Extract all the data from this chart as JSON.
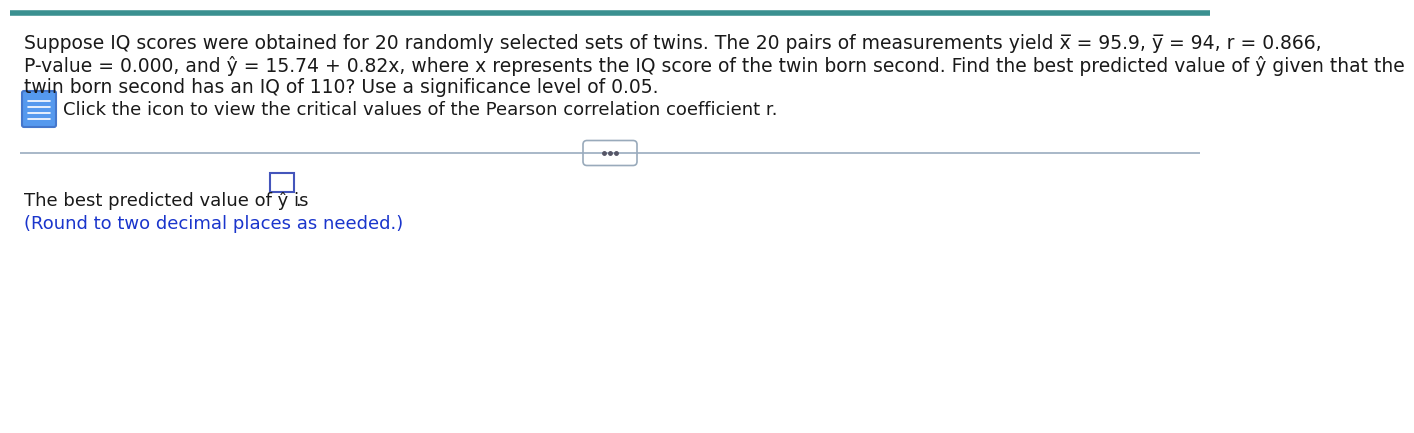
{
  "bg_color": "#ffffff",
  "top_border_color": "#3a9090",
  "main_text_line1": "Suppose IQ scores were obtained for 20 randomly selected sets of twins. The 20 pairs of measurements yield x̅ = 95.9, y̅ = 94, r = 0.866,",
  "main_text_line2": "P-value = 0.000, and ŷ = 15.74 + 0.82x, where x represents the IQ score of the twin born second. Find the best predicted value of ŷ given that the",
  "main_text_line3": "twin born second has an IQ of 110? Use a significance level of 0.05.",
  "icon_text": "Click the icon to view the critical values of the Pearson correlation coefficient r.",
  "divider_dots": "...",
  "answer_text_pre": "The best predicted value of ŷ is",
  "answer_text_post": ".",
  "round_note": "(Round to two decimal places as needed.)",
  "text_color": "#1a1a1a",
  "blue_text_color": "#1a35cc",
  "icon_border_color": "#4477cc",
  "icon_bg_color": "#5599ee",
  "divider_color": "#9aabbf",
  "dots_border_color": "#99aabb",
  "font_size_main": 13.5,
  "font_size_icon": 13.0,
  "font_size_answer": 13.0,
  "font_size_round": 13.0
}
